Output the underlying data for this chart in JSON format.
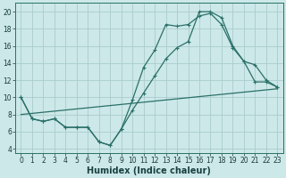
{
  "xlabel": "Humidex (Indice chaleur)",
  "bg_color": "#cce8e8",
  "grid_color": "#aacccc",
  "line_color": "#2a7068",
  "xlim": [
    -0.5,
    23.5
  ],
  "ylim": [
    3.5,
    21
  ],
  "xticks": [
    0,
    1,
    2,
    3,
    4,
    5,
    6,
    7,
    8,
    9,
    10,
    11,
    12,
    13,
    14,
    15,
    16,
    17,
    18,
    19,
    20,
    21,
    22,
    23
  ],
  "yticks": [
    4,
    6,
    8,
    10,
    12,
    14,
    16,
    18,
    20
  ],
  "line1_x": [
    0,
    1,
    2,
    3,
    4,
    5,
    6,
    7,
    8,
    9,
    10,
    11,
    12,
    13,
    14,
    15,
    16,
    17,
    18,
    19,
    20,
    21,
    22,
    23
  ],
  "line1_y": [
    10,
    7.5,
    7.2,
    7.5,
    6.5,
    6.5,
    6.5,
    4.8,
    4.4,
    6.3,
    9.7,
    13.5,
    15.5,
    18.5,
    18.3,
    18.5,
    19.5,
    19.8,
    18.5,
    15.8,
    14.2,
    11.8,
    11.8,
    11.2
  ],
  "line2_x": [
    0,
    1,
    2,
    3,
    4,
    5,
    6,
    7,
    8,
    9,
    10,
    11,
    12,
    13,
    14,
    15,
    16,
    17,
    18,
    19,
    20,
    21,
    22,
    23
  ],
  "line2_y": [
    10,
    7.5,
    7.2,
    7.5,
    6.5,
    6.5,
    6.5,
    4.8,
    4.4,
    6.3,
    8.5,
    10.5,
    12.5,
    14.5,
    15.8,
    16.5,
    20.0,
    20.0,
    19.3,
    16.0,
    14.2,
    13.8,
    12.0,
    11.2
  ],
  "line3_x": [
    0,
    23
  ],
  "line3_y": [
    8.0,
    11.0
  ],
  "marker_size": 3,
  "lw": 0.9,
  "xlabel_fontsize": 7,
  "tick_fontsize": 5.5
}
